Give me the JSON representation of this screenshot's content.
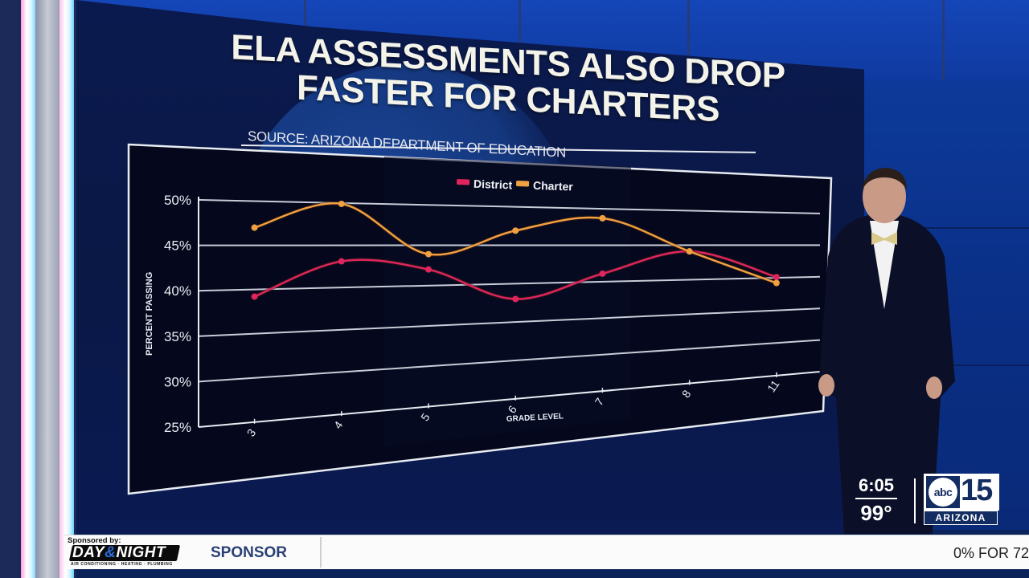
{
  "broadcast": {
    "headline_line1": "ELA ASSESSMENTS ALSO DROP",
    "headline_line2": "FASTER FOR CHARTERS",
    "source": "SOURCE: ARIZONA DEPARTMENT OF EDUCATION"
  },
  "chart_data": {
    "type": "line",
    "title": "ELA ASSESSMENTS ALSO DROP FASTER FOR CHARTERS",
    "subtitle": "SOURCE: ARIZONA DEPARTMENT OF EDUCATION",
    "xlabel": "GRADE LEVEL",
    "ylabel": "PERCENT PASSING",
    "categories": [
      "3",
      "4",
      "5",
      "6",
      "7",
      "8",
      "11"
    ],
    "series": [
      {
        "name": "District",
        "color": "#e0245e",
        "values": [
          39.2,
          43.1,
          42.0,
          38.0,
          41.1,
          44.1,
          40.1
        ]
      },
      {
        "name": "Charter",
        "color": "#f0a040",
        "values": [
          47.0,
          49.9,
          43.9,
          46.9,
          48.7,
          44.1,
          39.2
        ]
      }
    ],
    "yticks": [
      "25%",
      "30%",
      "35%",
      "40%",
      "45%",
      "50%"
    ],
    "ylim": [
      25,
      50
    ],
    "grid": true,
    "legend_position": "top-center",
    "smooth": true
  },
  "ticker": {
    "sponsored_by": "Sponsored by:",
    "sponsor_brand_part1": "DAY",
    "sponsor_brand_amp": "&",
    "sponsor_brand_part2": "NIGHT",
    "sponsor_tagline": "AIR CONDITIONING · HEATING · PLUMBING",
    "sponsor_label": "SPONSOR",
    "crawl_text": "0% FOR 72"
  },
  "station": {
    "time": "6:05",
    "temperature": "99°",
    "network": "abc",
    "channel": "15",
    "region": "ARIZONA"
  }
}
